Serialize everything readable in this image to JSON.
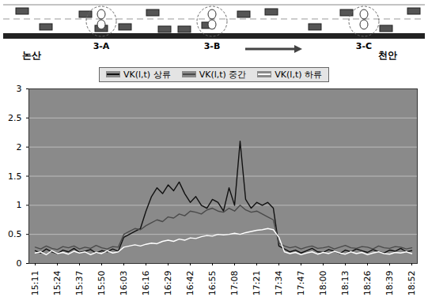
{
  "diagram": {
    "stations": [
      "3-A",
      "3-B",
      "3-C"
    ],
    "places": [
      "논산",
      "천안"
    ]
  },
  "chart_data": {
    "type": "line",
    "categories": [
      "15:11",
      null,
      null,
      null,
      "15:24",
      null,
      null,
      null,
      "15:37",
      null,
      null,
      null,
      "15:50",
      null,
      null,
      null,
      "16:03",
      null,
      null,
      null,
      "16:16",
      null,
      null,
      null,
      "16:29",
      null,
      null,
      null,
      "16:42",
      null,
      null,
      null,
      "16:55",
      null,
      null,
      null,
      "17:08",
      null,
      null,
      null,
      "17:21",
      null,
      null,
      null,
      "17:34",
      null,
      null,
      null,
      "17:47",
      null,
      null,
      null,
      "18:00",
      null,
      null,
      null,
      "18:13",
      null,
      null,
      null,
      "18:26",
      null,
      null,
      null,
      "18:39",
      null,
      null,
      null,
      "18:52"
    ],
    "series": [
      {
        "name": "VK(l,t) 상류",
        "color": "#111111",
        "values": [
          0.22,
          0.18,
          0.25,
          0.2,
          0.17,
          0.23,
          0.2,
          0.26,
          0.19,
          0.21,
          0.24,
          0.18,
          0.22,
          0.2,
          0.25,
          0.21,
          0.45,
          0.5,
          0.55,
          0.6,
          0.9,
          1.15,
          1.3,
          1.2,
          1.35,
          1.25,
          1.4,
          1.2,
          1.05,
          1.15,
          1.0,
          0.95,
          1.1,
          1.05,
          0.9,
          1.3,
          1.0,
          2.1,
          1.1,
          0.95,
          1.05,
          1.0,
          1.05,
          0.95,
          0.3,
          0.25,
          0.2,
          0.23,
          0.18,
          0.22,
          0.26,
          0.2,
          0.19,
          0.24,
          0.21,
          0.17,
          0.23,
          0.2,
          0.25,
          0.22,
          0.19,
          0.24,
          0.2,
          0.18,
          0.23,
          0.21,
          0.26,
          0.2,
          0.22
        ]
      },
      {
        "name": "VK(l,t) 중간",
        "color": "#4a4a4a",
        "values": [
          0.28,
          0.25,
          0.3,
          0.26,
          0.24,
          0.29,
          0.27,
          0.3,
          0.25,
          0.28,
          0.26,
          0.31,
          0.27,
          0.25,
          0.29,
          0.28,
          0.5,
          0.55,
          0.6,
          0.58,
          0.65,
          0.7,
          0.75,
          0.72,
          0.8,
          0.78,
          0.85,
          0.82,
          0.9,
          0.88,
          0.85,
          0.92,
          0.95,
          0.9,
          0.88,
          0.95,
          0.9,
          1.0,
          0.92,
          0.88,
          0.9,
          0.85,
          0.8,
          0.75,
          0.35,
          0.3,
          0.27,
          0.29,
          0.25,
          0.28,
          0.3,
          0.26,
          0.27,
          0.29,
          0.25,
          0.28,
          0.31,
          0.27,
          0.26,
          0.29,
          0.28,
          0.25,
          0.3,
          0.27,
          0.26,
          0.29,
          0.28,
          0.25,
          0.27
        ]
      },
      {
        "name": "VK(l,t) 하류",
        "color": "#ffffff",
        "values": [
          0.18,
          0.2,
          0.15,
          0.22,
          0.17,
          0.19,
          0.16,
          0.21,
          0.18,
          0.2,
          0.15,
          0.19,
          0.17,
          0.22,
          0.18,
          0.2,
          0.28,
          0.3,
          0.32,
          0.3,
          0.33,
          0.35,
          0.34,
          0.38,
          0.4,
          0.38,
          0.42,
          0.4,
          0.44,
          0.43,
          0.46,
          0.48,
          0.47,
          0.5,
          0.49,
          0.5,
          0.52,
          0.5,
          0.53,
          0.55,
          0.57,
          0.58,
          0.6,
          0.58,
          0.45,
          0.2,
          0.17,
          0.19,
          0.15,
          0.18,
          0.2,
          0.16,
          0.19,
          0.17,
          0.21,
          0.18,
          0.16,
          0.2,
          0.17,
          0.19,
          0.15,
          0.18,
          0.2,
          0.17,
          0.16,
          0.19,
          0.18,
          0.2,
          0.17
        ]
      }
    ],
    "ylim": [
      0,
      3
    ],
    "yticks": [
      0,
      0.5,
      1,
      1.5,
      2,
      2.5,
      3
    ],
    "grid": true,
    "legend": "top"
  }
}
